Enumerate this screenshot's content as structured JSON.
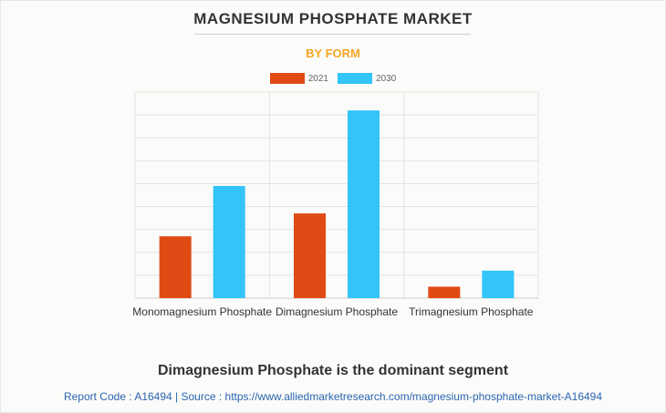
{
  "header": {
    "title": "MAGNESIUM PHOSPHATE MARKET",
    "subtitle": "BY FORM"
  },
  "chart_data": {
    "type": "bar",
    "categories": [
      "Monomagnesium Phosphate",
      "Dimagnesium Phosphate",
      "Trimagnesium Phosphate"
    ],
    "series": [
      {
        "name": "2021",
        "color": "#e04a14",
        "values": [
          27,
          37,
          5
        ]
      },
      {
        "name": "2030",
        "color": "#33c4fa",
        "values": [
          49,
          82,
          12
        ]
      }
    ],
    "ylim": [
      0,
      90
    ],
    "grid": true,
    "legend": "top-center",
    "title": "MAGNESIUM PHOSPHATE MARKET",
    "subtitle": "BY FORM",
    "xlabel": "",
    "ylabel": ""
  },
  "footer": {
    "caption": "Dimagnesium Phosphate is the dominant segment",
    "source": "Report Code : A16494  |  Source : https://www.alliedmarketresearch.com/magnesium-phosphate-market-A16494"
  }
}
